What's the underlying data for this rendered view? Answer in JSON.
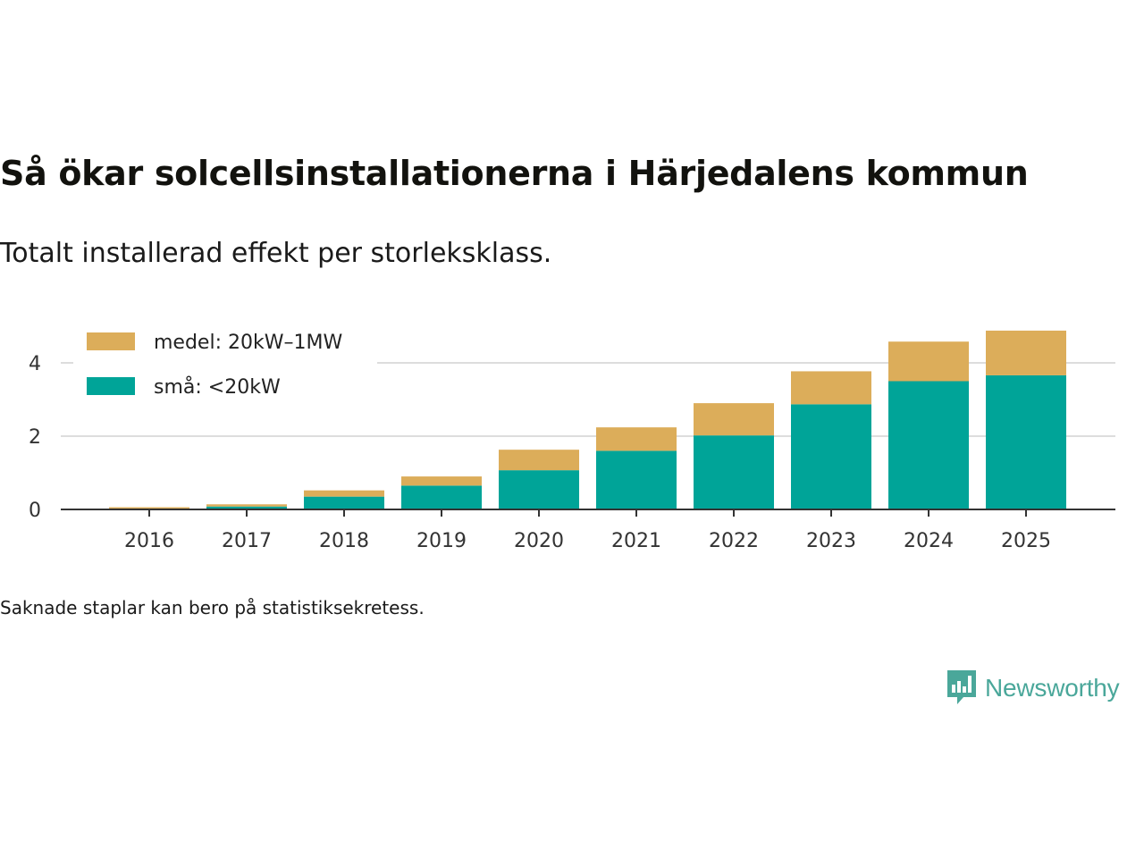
{
  "title": "Så ökar solcellsinstallationerna i Härjedalens kommun",
  "subtitle": "Totalt installerad effekt per storleksklass.",
  "footnote": "Saknade staplar kan bero på statistiksekretess.",
  "brand": {
    "name": "Newsworthy",
    "icon": "newsworthy-logo-icon",
    "color": "#4aa79a"
  },
  "chart_data": {
    "type": "bar",
    "stacked": true,
    "categories": [
      "2016",
      "2017",
      "2018",
      "2019",
      "2020",
      "2021",
      "2022",
      "2023",
      "2024",
      "2025"
    ],
    "series": [
      {
        "name": "små: <20kW",
        "color": "#00a498",
        "values": [
          0.02,
          0.08,
          0.35,
          0.65,
          1.07,
          1.6,
          2.02,
          2.87,
          3.5,
          3.66
        ]
      },
      {
        "name": "medel: 20kW–1MW",
        "color": "#dcad5a",
        "values": [
          0.04,
          0.06,
          0.17,
          0.25,
          0.56,
          0.64,
          0.88,
          0.9,
          1.08,
          1.22
        ]
      }
    ],
    "yticks": [
      0,
      2,
      4
    ],
    "ylim": [
      0,
      5
    ],
    "grid": true,
    "legend": "top-left",
    "xlabel": "",
    "ylabel": ""
  }
}
